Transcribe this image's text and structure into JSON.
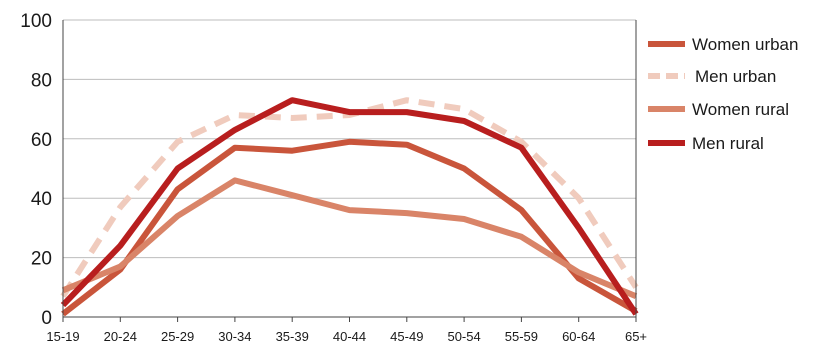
{
  "chart_data": {
    "type": "line",
    "title": "",
    "xlabel": "",
    "ylabel": "",
    "categories": [
      "15-19",
      "20-24",
      "25-29",
      "30-34",
      "35-39",
      "40-44",
      "45-49",
      "50-54",
      "55-59",
      "60-64",
      "65+"
    ],
    "ylim": [
      0,
      100
    ],
    "yticks": [
      "0",
      "20",
      "40",
      "60",
      "80",
      "100"
    ],
    "grid": true,
    "legend_position": "right",
    "series": [
      {
        "name": "Women urban",
        "color": "#c9553b",
        "dash": "solid",
        "values": [
          1,
          16,
          43,
          57,
          56,
          59,
          58,
          50,
          36,
          13,
          2
        ]
      },
      {
        "name": "Men urban",
        "color": "#f0cbbd",
        "dash": "dashed",
        "values": [
          7,
          37,
          59,
          68,
          67,
          68,
          73,
          70,
          59,
          40,
          10
        ]
      },
      {
        "name": "Women rural",
        "color": "#d98468",
        "dash": "solid",
        "values": [
          9,
          17,
          34,
          46,
          41,
          36,
          35,
          33,
          27,
          15,
          7
        ]
      },
      {
        "name": "Men rural",
        "color": "#b81e1e",
        "dash": "solid",
        "values": [
          4,
          24,
          50,
          63,
          73,
          69,
          69,
          66,
          57,
          30,
          1
        ]
      }
    ]
  }
}
